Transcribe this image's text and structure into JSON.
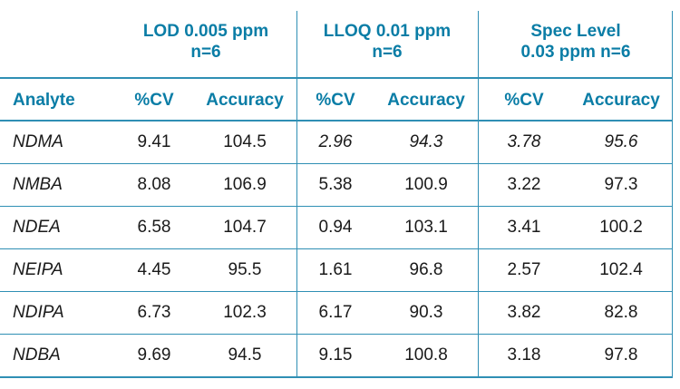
{
  "group_headers": [
    {
      "line1": "LOD 0.005 ppm",
      "line2": "n=6"
    },
    {
      "line1": "LLOQ 0.01 ppm",
      "line2": "n=6"
    },
    {
      "line1": "Spec Level",
      "line2": "0.03 ppm n=6"
    }
  ],
  "column_headers": [
    "Analyte",
    "%CV",
    "Accuracy",
    "%CV",
    "Accuracy",
    "%CV",
    "Accuracy"
  ],
  "rows": [
    {
      "analyte": "NDMA",
      "values": [
        "9.41",
        "104.5",
        "2.96",
        "94.3",
        "3.78",
        "95.6"
      ]
    },
    {
      "analyte": "NMBA",
      "values": [
        "8.08",
        "106.9",
        "5.38",
        "100.9",
        "3.22",
        "97.3"
      ]
    },
    {
      "analyte": "NDEA",
      "values": [
        "6.58",
        "104.7",
        "0.94",
        "103.1",
        "3.41",
        "100.2"
      ]
    },
    {
      "analyte": "NEIPA",
      "values": [
        "4.45",
        "95.5",
        "1.61",
        "96.8",
        "2.57",
        "102.4"
      ]
    },
    {
      "analyte": "NDIPA",
      "values": [
        "6.73",
        "102.3",
        "6.17",
        "90.3",
        "3.82",
        "82.8"
      ]
    },
    {
      "analyte": "NDBA",
      "values": [
        "9.69",
        "94.5",
        "9.15",
        "100.8",
        "3.18",
        "97.8"
      ]
    }
  ],
  "colors": {
    "header_text": "#0a7da6",
    "rule": "#2f8fb4",
    "body_text": "#1a1a1a"
  }
}
